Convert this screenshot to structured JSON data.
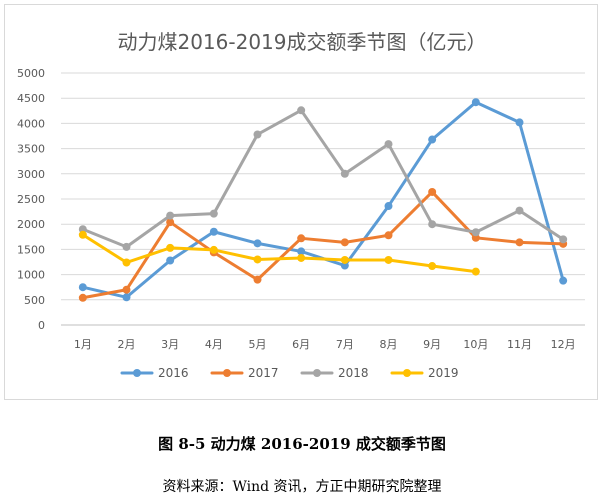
{
  "chart_data": {
    "type": "line",
    "title": "动力煤2016-2019成交额季节图（亿元）",
    "categories": [
      "1月",
      "2月",
      "3月",
      "4月",
      "5月",
      "6月",
      "7月",
      "8月",
      "9月",
      "10月",
      "11月",
      "12月"
    ],
    "ylim": [
      0,
      5000
    ],
    "yticks": [
      0,
      500,
      1000,
      1500,
      2000,
      2500,
      3000,
      3500,
      4000,
      4500,
      5000
    ],
    "grid": true,
    "legend_position": "bottom",
    "series": [
      {
        "name": "2016",
        "color": "#5b9bd5",
        "values": [
          750,
          550,
          1280,
          1850,
          1620,
          1460,
          1180,
          2360,
          3680,
          4420,
          4020,
          880
        ]
      },
      {
        "name": "2017",
        "color": "#ed7d31",
        "values": [
          540,
          700,
          2040,
          1440,
          900,
          1720,
          1640,
          1780,
          2640,
          1730,
          1640,
          1610
        ]
      },
      {
        "name": "2018",
        "color": "#a5a5a5",
        "values": [
          1900,
          1550,
          2170,
          2210,
          3780,
          4260,
          3000,
          3590,
          2000,
          1840,
          2270,
          1700
        ]
      },
      {
        "name": "2019",
        "color": "#ffc000",
        "values": [
          1790,
          1240,
          1530,
          1490,
          1300,
          1330,
          1290,
          1290,
          1170,
          1060,
          null,
          null
        ]
      }
    ]
  },
  "caption": {
    "title": "图 8-5 动力煤 2016-2019 成交额季节图",
    "source": "资料来源：Wind 资讯，方正中期研究院整理"
  }
}
